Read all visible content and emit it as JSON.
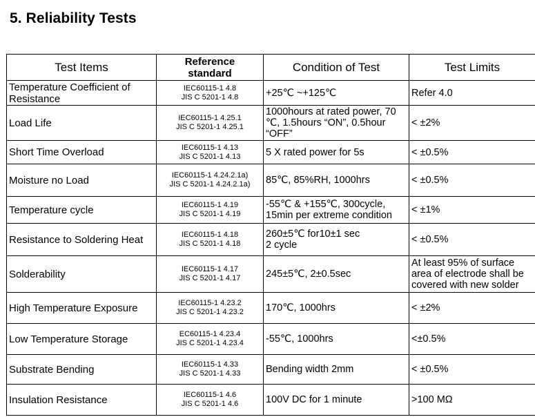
{
  "title": "5. Reliability Tests",
  "headers": {
    "items": "Test Items",
    "standard_line1": "Reference",
    "standard_line2": "standard",
    "condition": "Condition of Test",
    "limits": "Test Limits"
  },
  "rows": [
    {
      "item": [
        "Temperature Coefficient of",
        "Resistance"
      ],
      "standard": [
        "IEC60115-1 4.8",
        "JIS C 5201-1 4.8"
      ],
      "condition": [
        "+25℃ ~+125℃"
      ],
      "limit": [
        "Refer 4.0"
      ]
    },
    {
      "item": [
        "Load Life"
      ],
      "standard": [
        "IEC60115-1 4.25.1",
        "JIS C 5201-1 4.25.1"
      ],
      "condition": [
        "1000hours at rated power, 70",
        "℃, 1.5hours “ON”, 0.5hour",
        "“OFF”"
      ],
      "limit": [
        "< ±2%"
      ]
    },
    {
      "item": [
        "Short Time Overload"
      ],
      "standard": [
        "IEC60115-1 4.13",
        "JIS C 5201-1 4.13"
      ],
      "condition": [
        "5 X rated power for 5s"
      ],
      "limit": [
        "< ±0.5%"
      ]
    },
    {
      "item": [
        "Moisture no Load"
      ],
      "standard": [
        "IEC60115-1 4.24.2.1a)",
        "JIS C 5201-1 4.24.2.1a)"
      ],
      "condition": [
        "85℃, 85%RH, 1000hrs"
      ],
      "limit": [
        "< ±0.5%"
      ]
    },
    {
      "item": [
        "Temperature cycle"
      ],
      "standard": [
        "IEC60115-1 4.19",
        "JIS C 5201-1 4.19"
      ],
      "condition": [
        "-55℃ & +155℃, 300cycle,",
        "15min per extreme condition"
      ],
      "limit": [
        "< ±1%"
      ]
    },
    {
      "item": [
        "Resistance to Soldering Heat"
      ],
      "standard": [
        "IEC60115-1 4.18",
        "JIS C 5201-1 4.18"
      ],
      "condition": [
        "260±5℃ for10±1 sec",
        "2 cycle"
      ],
      "limit": [
        "< ±0.5%"
      ]
    },
    {
      "item": [
        "Solderability"
      ],
      "standard": [
        "IEC60115-1 4.17",
        "JIS C 5201-1 4.17"
      ],
      "condition": [
        "245±5℃, 2±0.5sec"
      ],
      "limit": [
        "At least 95% of surface",
        "area of electrode shall be",
        "covered with new solder"
      ]
    },
    {
      "item": [
        "High Temperature Exposure"
      ],
      "standard": [
        "IEC60115-1 4.23.2",
        "JIS C 5201-1 4.23.2"
      ],
      "condition": [
        "170℃, 1000hrs"
      ],
      "limit": [
        "< ±2%"
      ]
    },
    {
      "item": [
        "Low Temperature Storage"
      ],
      "standard": [
        "EC60115-1 4.23.4",
        "JIS C 5201-1 4.23.4"
      ],
      "condition": [
        "-55℃, 1000hrs"
      ],
      "limit": [
        "<±0.5%"
      ]
    },
    {
      "item": [
        "Substrate Bending"
      ],
      "standard": [
        "IEC60115-1 4.33",
        "JIS C 5201-1 4.33"
      ],
      "condition": [
        "Bending width 2mm"
      ],
      "limit": [
        "< ±0.5%"
      ]
    },
    {
      "item": [
        "Insulation Resistance"
      ],
      "standard": [
        "IEC60115-1 4.6",
        "JIS C 5201-1 4.6"
      ],
      "condition": [
        "100V DC for 1 minute"
      ],
      "limit": [
        ">100 MΩ"
      ]
    }
  ]
}
